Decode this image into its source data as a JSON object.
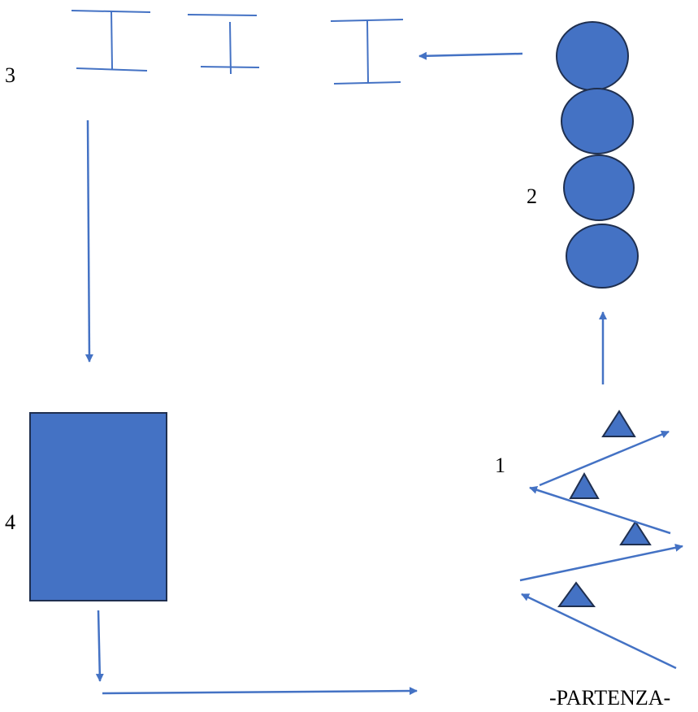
{
  "diagram": {
    "labels": {
      "station_1": "1",
      "station_2": "2",
      "station_3": "3",
      "station_4": "4",
      "start": "-PARTENZA-"
    },
    "colors": {
      "shape_fill": "#4472c4",
      "shape_stroke": "#1f2f4f",
      "line": "#4472c4",
      "text": "#000000"
    },
    "stations": [
      {
        "number": "1",
        "elements": "triangle",
        "count": 4
      },
      {
        "number": "2",
        "elements": "circle",
        "count": 4
      },
      {
        "number": "3",
        "elements": "hurdle",
        "count": 3
      },
      {
        "number": "4",
        "elements": "rectangle",
        "count": 1
      }
    ]
  }
}
